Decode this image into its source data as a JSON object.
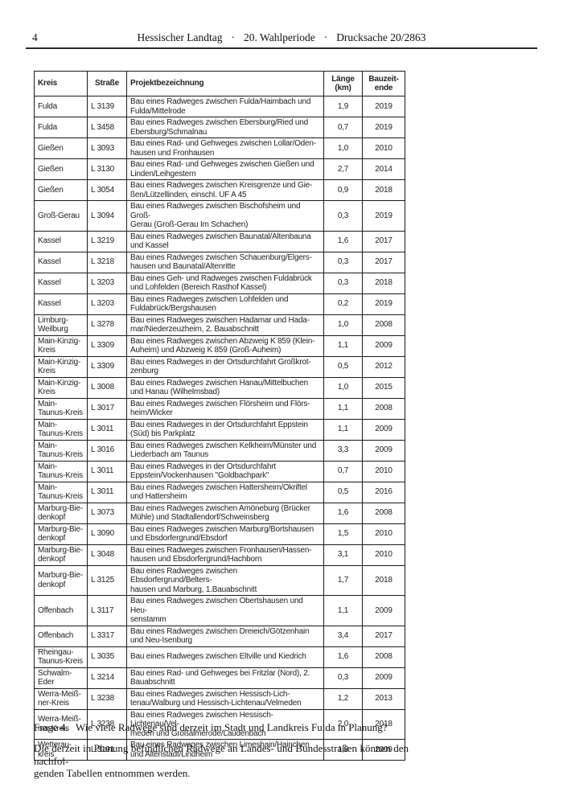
{
  "page_header": {
    "page_number": "4",
    "title_parts": [
      "Hessischer Landtag",
      "20. Wahlperiode",
      "Drucksache 20/2863"
    ],
    "separator": "·"
  },
  "table": {
    "columns": [
      "Kreis",
      "Straße",
      "Projektbezeichnung",
      "Länge\n(km)",
      "Bauzeit-\nende"
    ],
    "rows": [
      {
        "kreis": "Fulda",
        "strasse": "L 3139",
        "projekt": "Bau eines Radweges zwischen Fulda/Haimbach und\nFulda/Mittelrode",
        "laenge": "1,9",
        "bauzeitende": "2019"
      },
      {
        "kreis": "Fulda",
        "strasse": "L 3458",
        "projekt": "Bau eines Radweges zwischen Ebersburg/Ried und\nEbersburg/Schmalnau",
        "laenge": "0,7",
        "bauzeitende": "2019"
      },
      {
        "kreis": "Gießen",
        "strasse": "L 3093",
        "projekt": "Bau eines Rad- und Gehweges zwischen Lollar/Oden-\nhausen und Fronhausen",
        "laenge": "1,0",
        "bauzeitende": "2010"
      },
      {
        "kreis": "Gießen",
        "strasse": "L 3130",
        "projekt": "Bau eines Rad- und Gehweges zwischen Gießen und\nLinden/Leihgestern",
        "laenge": "2,7",
        "bauzeitende": "2014"
      },
      {
        "kreis": "Gießen",
        "strasse": "L 3054",
        "projekt": "Bau eines Radweges zwischen Kreisgrenze und Gie-\nßen/Lützellinden, einschl. UF A 45",
        "laenge": "0,9",
        "bauzeitende": "2018"
      },
      {
        "kreis": "Groß-Gerau",
        "strasse": "L 3094",
        "projekt": "Bau eines Radweges zwischen Bischofsheim und Groß-\nGerau (Groß-Gerau Im Schachen)",
        "laenge": "0,3",
        "bauzeitende": "2019"
      },
      {
        "kreis": "Kassel",
        "strasse": "L 3219",
        "projekt": "Bau eines Radweges zwischen Baunatal/Altenbauna\nund Kassel",
        "laenge": "1,6",
        "bauzeitende": "2017"
      },
      {
        "kreis": "Kassel",
        "strasse": "L 3218",
        "projekt": "Bau eines Radweges zwischen Schauenburg/Elgers-\nhausen und Baunatal/Altenritte",
        "laenge": "0,3",
        "bauzeitende": "2017"
      },
      {
        "kreis": "Kassel",
        "strasse": "L 3203",
        "projekt": "Bau eines Geh- und Radweges zwischen Fuldabrück\nund Lohfelden (Bereich Rasthof Kassel)",
        "laenge": "0,3",
        "bauzeitende": "2018"
      },
      {
        "kreis": "Kassel",
        "strasse": "L 3203",
        "projekt": "Bau eines Radweges zwischen Lohfelden und\nFuldabrück/Bergshausen",
        "laenge": "0,2",
        "bauzeitende": "2019"
      },
      {
        "kreis": "Limburg-\nWeilburg",
        "strasse": "L 3278",
        "projekt": "Bau eines Radweges zwischen Hadamar und Hada-\nmar/Niederzeuzheim, 2. Bauabschnitt",
        "laenge": "1,0",
        "bauzeitende": "2008"
      },
      {
        "kreis": "Main-Kinzig-\nKreis",
        "strasse": "L 3309",
        "projekt": "Bau eines Radweges zwischen Abzweig K 859 (Klein-\nAuheim) und Abzweig K 859 (Groß-Auheim)",
        "laenge": "1,1",
        "bauzeitende": "2009"
      },
      {
        "kreis": "Main-Kinzig-\nKreis",
        "strasse": "L 3309",
        "projekt": "Bau eines Radweges in der Ortsdurchfahrt Großkrot-\nzenburg",
        "laenge": "0,5",
        "bauzeitende": "2012"
      },
      {
        "kreis": "Main-Kinzig-\nKreis",
        "strasse": "L 3008",
        "projekt": "Bau eines Radweges zwischen Hanau/Mittelbuchen\nund Hanau (Wilhelmsbad)",
        "laenge": "1,0",
        "bauzeitende": "2015"
      },
      {
        "kreis": "Main-\nTaunus-Kreis",
        "strasse": "L 3017",
        "projekt": "Bau eines Radweges zwischen Flörsheim und Flörs-\nheim/Wicker",
        "laenge": "1,1",
        "bauzeitende": "2008"
      },
      {
        "kreis": "Main-\nTaunus-Kreis",
        "strasse": "L 3011",
        "projekt": "Bau eines Radweges in der Ortsdurchfahrt Eppstein\n(Süd) bis Parkplatz",
        "laenge": "1,1",
        "bauzeitende": "2009"
      },
      {
        "kreis": "Main-\nTaunus-Kreis",
        "strasse": "L 3016",
        "projekt": "Bau eines Radweges zwischen Kelkheim/Münster und\nLiederbach am Taunus",
        "laenge": "3,3",
        "bauzeitende": "2009"
      },
      {
        "kreis": "Main-\nTaunus-Kreis",
        "strasse": "L 3011",
        "projekt": "Bau eines Radweges in der Ortsdurchfahrt\nEppstein/Vockenhausen \"Goldbachpark\"",
        "laenge": "0,7",
        "bauzeitende": "2010"
      },
      {
        "kreis": "Main-\nTaunus-Kreis",
        "strasse": "L 3011",
        "projekt": "Bau eines Radweges zwischen Hattersheim/Okriftel\nund Hattersheim",
        "laenge": "0,5",
        "bauzeitende": "2016"
      },
      {
        "kreis": "Marburg-Bie-\ndenkopf",
        "strasse": "L 3073",
        "projekt": "Bau eines Radweges zwischen Amöneburg (Brücker\nMühle) und Stadtallendorf/Schweinsberg",
        "laenge": "1,6",
        "bauzeitende": "2008"
      },
      {
        "kreis": "Marburg-Bie-\ndenkopf",
        "strasse": "L 3090",
        "projekt": "Bau eines Radweges zwischen Marburg/Bortshausen\nund Ebsdorfergrund/Ebsdorf",
        "laenge": "1,5",
        "bauzeitende": "2010"
      },
      {
        "kreis": "Marburg-Bie-\ndenkopf",
        "strasse": "L 3048",
        "projekt": "Bau eines Radweges zwischen Fronhausen/Hassen-\nhausen und Ebsdorfergrund/Hachborn",
        "laenge": "3,1",
        "bauzeitende": "2010"
      },
      {
        "kreis": "Marburg-Bie-\ndenkopf",
        "strasse": "L 3125",
        "projekt": "Bau eines Radweges zwischen Ebsdorfergrund/Belters-\nhausen und Marburg, 1.Bauabschnitt",
        "laenge": "1,7",
        "bauzeitende": "2018"
      },
      {
        "kreis": "Offenbach",
        "strasse": "L 3117",
        "projekt": "Bau eines Radweges zwischen Obertshausen und Heu-\nsenstamm",
        "laenge": "1,1",
        "bauzeitende": "2009"
      },
      {
        "kreis": "Offenbach",
        "strasse": "L 3317",
        "projekt": "Bau eines Radweges zwischen Dreieich/Götzenhain\nund Neu-Isenburg",
        "laenge": "3,4",
        "bauzeitende": "2017"
      },
      {
        "kreis": "Rheingau-\nTaunus-Kreis",
        "strasse": "L 3035",
        "projekt": "Bau eines Radweges zwischen Eltville und Kiedrich",
        "laenge": "1,6",
        "bauzeitende": "2008"
      },
      {
        "kreis": "Schwalm-\nEder",
        "strasse": "L 3214",
        "projekt": "Bau eines Rad- und Gehweges bei Fritzlar (Nord), 2.\nBauabschnitt",
        "laenge": "0,3",
        "bauzeitende": "2009"
      },
      {
        "kreis": "Werra-Meiß-\nner-Kreis",
        "strasse": "L 3238",
        "projekt": "Bau eines Radweges zwischen Hessisch-Lich-\ntenau/Walburg und Hessisch-Lichtenau/Velmeden",
        "laenge": "1,2",
        "bauzeitende": "2013"
      },
      {
        "kreis": "Werra-Meiß-\nner-Kreis",
        "strasse": "L 3238",
        "projekt": "Bau eines Radweges zwischen Hessisch-Lichtenau/Vel-\nmeden und Großalmerode/Laudenbach",
        "laenge": "2,0",
        "bauzeitende": "2018"
      },
      {
        "kreis": "Wetterau-\nkreis",
        "strasse": "L 3191",
        "projekt": "Bau eines Radweges zwischen Limeshain/Hainchen\nund Altenstadt/Lindheim",
        "laenge": "1,8",
        "bauzeitende": "2009"
      }
    ]
  },
  "question": {
    "label": "Frage 4.",
    "text": "Wie viele Radwege sind derzeit im Stadt und Landkreis Fulda in Planung?"
  },
  "answer": {
    "lines": [
      "Die derzeit in Planung befindlichen Radwege an Landes- und Bundesstraßen können den nachfol-",
      "genden Tabellen entnommen werden."
    ]
  }
}
